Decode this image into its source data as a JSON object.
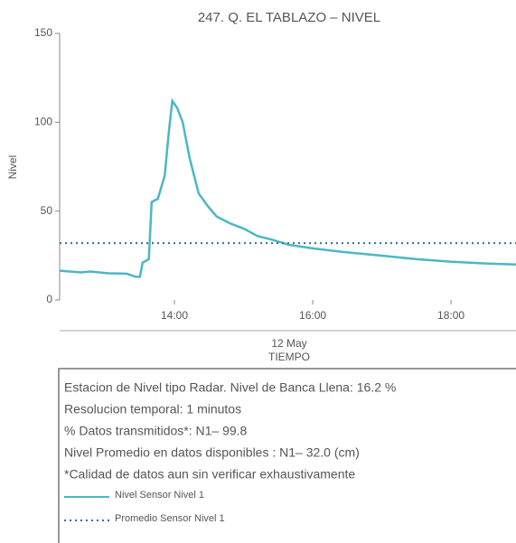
{
  "chart_data": {
    "type": "line",
    "title": "247. Q. EL TABLAZO – NIVEL",
    "ylabel": "Nivel",
    "xlabel": "TIEMPO",
    "date_label": "12 May",
    "xlim": [
      12.34,
      18.94
    ],
    "xticks": [
      {
        "value": 14,
        "label": "14:00"
      },
      {
        "value": 16,
        "label": "16:00"
      },
      {
        "value": 18,
        "label": "18:00"
      }
    ],
    "ylim": [
      0,
      150
    ],
    "yticks": [
      0,
      50,
      100,
      150
    ],
    "series": [
      {
        "name": "Nivel Sensor Nivel 1",
        "color": "#4cb6c4",
        "x": [
          12.34,
          12.65,
          12.78,
          13.05,
          13.31,
          13.44,
          13.5,
          13.54,
          13.63,
          13.67,
          13.76,
          13.86,
          13.92,
          13.97,
          14.04,
          14.12,
          14.22,
          14.35,
          14.48,
          14.61,
          14.81,
          15.01,
          15.2,
          15.4,
          15.66,
          16.01,
          16.44,
          16.97,
          17.49,
          18.01,
          18.54,
          18.94
        ],
        "values": [
          16.5,
          15.5,
          16,
          15,
          14.8,
          13,
          13,
          21,
          23,
          55,
          57,
          70,
          95,
          112,
          108,
          100,
          80,
          60,
          53,
          47,
          43,
          40,
          36,
          34,
          31,
          29,
          27,
          25,
          23,
          21.5,
          20.5,
          20
        ]
      },
      {
        "name": "Promedio Sensor Nivel 1",
        "color": "#2f6f9f",
        "style": "dotted",
        "x": [
          12.34,
          18.94
        ],
        "values": [
          32,
          32
        ]
      }
    ],
    "notes": [
      "Estacion de Nivel tipo Radar. Nivel de Banca Llena: 16.2 %",
      "Resolucion temporal: 1 minutos",
      "% Datos transmitidos*: N1– 99.8",
      "Nivel Promedio en datos disponibles : N1– 32.0 (cm)",
      "*Calidad de datos aun sin verificar exhaustivamente"
    ]
  }
}
